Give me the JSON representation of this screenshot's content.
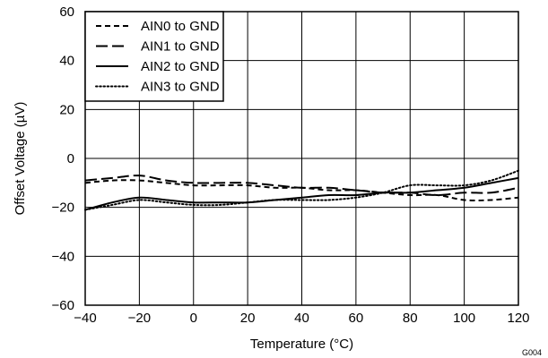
{
  "chart_data": {
    "type": "line",
    "xlabel": "Temperature (°C)",
    "ylabel": "Offset Voltage (µV)",
    "xlim": [
      -40,
      120
    ],
    "ylim": [
      -60,
      60
    ],
    "xticks": [
      -40,
      -20,
      0,
      20,
      40,
      60,
      80,
      100,
      120
    ],
    "yticks": [
      -60,
      -40,
      -20,
      0,
      20,
      40,
      60
    ],
    "x_tick_labels": [
      "−40",
      "−20",
      "0",
      "20",
      "40",
      "60",
      "80",
      "100",
      "120"
    ],
    "y_tick_labels": [
      "−60",
      "−40",
      "−20",
      "0",
      "20",
      "40",
      "60"
    ],
    "grid": true,
    "legend_position": "top-left",
    "figure_code": "G004",
    "series": [
      {
        "name": "AIN0 to GND",
        "style": "short-dash",
        "x": [
          -40,
          -30,
          -20,
          -10,
          0,
          10,
          20,
          30,
          40,
          50,
          60,
          70,
          80,
          90,
          100,
          110,
          120
        ],
        "y": [
          -10,
          -9,
          -9,
          -10,
          -11,
          -11,
          -11,
          -12,
          -12,
          -13,
          -13,
          -14,
          -15,
          -15,
          -17,
          -17,
          -16
        ]
      },
      {
        "name": "AIN1 to GND",
        "style": "long-dash",
        "x": [
          -40,
          -30,
          -20,
          -10,
          0,
          10,
          20,
          30,
          40,
          50,
          60,
          70,
          80,
          90,
          100,
          110,
          120
        ],
        "y": [
          -9,
          -8,
          -7,
          -9,
          -10,
          -10,
          -10,
          -11,
          -12,
          -12,
          -13,
          -14,
          -14,
          -15,
          -14,
          -14,
          -12
        ]
      },
      {
        "name": "AIN2 to GND",
        "style": "solid",
        "x": [
          -40,
          -30,
          -20,
          -10,
          0,
          10,
          20,
          30,
          40,
          50,
          60,
          70,
          80,
          90,
          100,
          110,
          120
        ],
        "y": [
          -21,
          -18,
          -16,
          -17,
          -18,
          -18,
          -18,
          -17,
          -16,
          -15,
          -15,
          -14,
          -14,
          -13,
          -12,
          -10,
          -8
        ]
      },
      {
        "name": "AIN3 to GND",
        "style": "dotted",
        "x": [
          -40,
          -30,
          -20,
          -10,
          0,
          10,
          20,
          30,
          40,
          50,
          60,
          70,
          80,
          90,
          100,
          110,
          120
        ],
        "y": [
          -21,
          -19,
          -17,
          -18,
          -19,
          -19,
          -18,
          -17,
          -17,
          -17,
          -16,
          -14,
          -11,
          -11,
          -11,
          -9,
          -5
        ]
      }
    ]
  }
}
